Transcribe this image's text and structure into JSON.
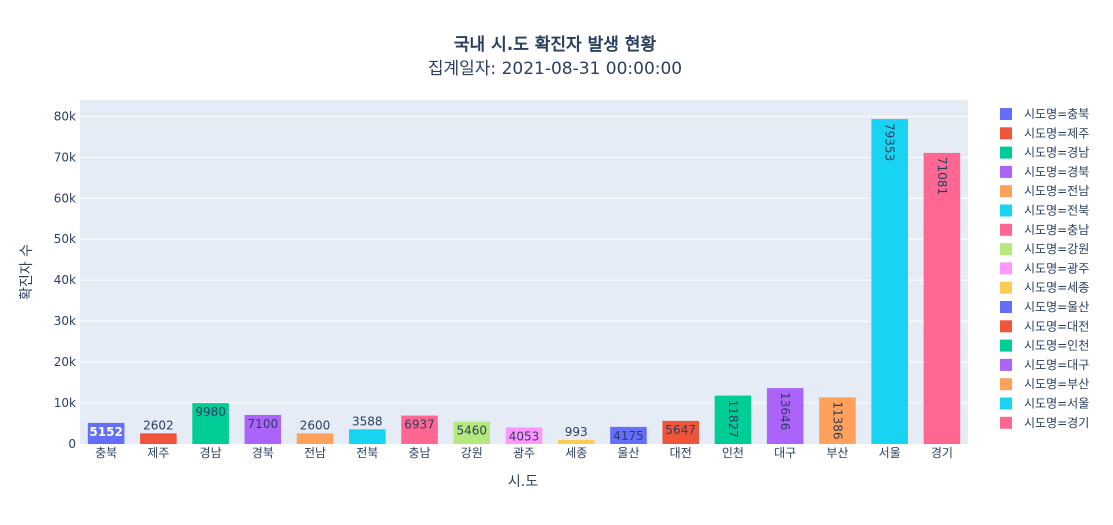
{
  "chart_data": {
    "type": "bar",
    "title": "국내 시.도 확진자 발생 현황",
    "subtitle": "집계일자: 2021-08-31 00:00:00",
    "xlabel": "시.도",
    "ylabel": "확진자 수",
    "ylim": [
      0,
      84000
    ],
    "yticks": [
      0,
      10000,
      20000,
      30000,
      40000,
      50000,
      60000,
      70000,
      80000
    ],
    "ytick_labels": [
      "0",
      "10k",
      "20k",
      "30k",
      "40k",
      "50k",
      "60k",
      "70k",
      "80k"
    ],
    "grid": true,
    "legend_position": "right",
    "categories": [
      "충북",
      "제주",
      "경남",
      "경북",
      "전남",
      "전북",
      "충남",
      "강원",
      "광주",
      "세종",
      "울산",
      "대전",
      "인천",
      "대구",
      "부산",
      "서울",
      "경기"
    ],
    "values": [
      5152,
      2602,
      9980,
      7100,
      2600,
      3588,
      6937,
      5460,
      4053,
      993,
      4175,
      5647,
      11827,
      13646,
      11386,
      79353,
      71081
    ],
    "legend": [
      "시도명=충북",
      "시도명=제주",
      "시도명=경남",
      "시도명=경북",
      "시도명=전남",
      "시도명=전북",
      "시도명=충남",
      "시도명=강원",
      "시도명=광주",
      "시도명=세종",
      "시도명=울산",
      "시도명=대전",
      "시도명=인천",
      "시도명=대구",
      "시도명=부산",
      "시도명=서울",
      "시도명=경기"
    ],
    "colors": [
      "#636efa",
      "#EF553B",
      "#00cc96",
      "#ab63fa",
      "#FFA15A",
      "#19d3f3",
      "#FF6692",
      "#B6E880",
      "#FF97FF",
      "#FECB52",
      "#636efa",
      "#EF553B",
      "#00cc96",
      "#ab63fa",
      "#FFA15A",
      "#19d3f3",
      "#FF6692"
    ],
    "label_rotated": [
      false,
      false,
      false,
      false,
      false,
      false,
      false,
      false,
      false,
      false,
      false,
      false,
      true,
      true,
      true,
      true,
      true
    ],
    "label_light": [
      true,
      false,
      false,
      false,
      false,
      false,
      false,
      false,
      false,
      false,
      false,
      false,
      false,
      false,
      false,
      false,
      false
    ]
  }
}
